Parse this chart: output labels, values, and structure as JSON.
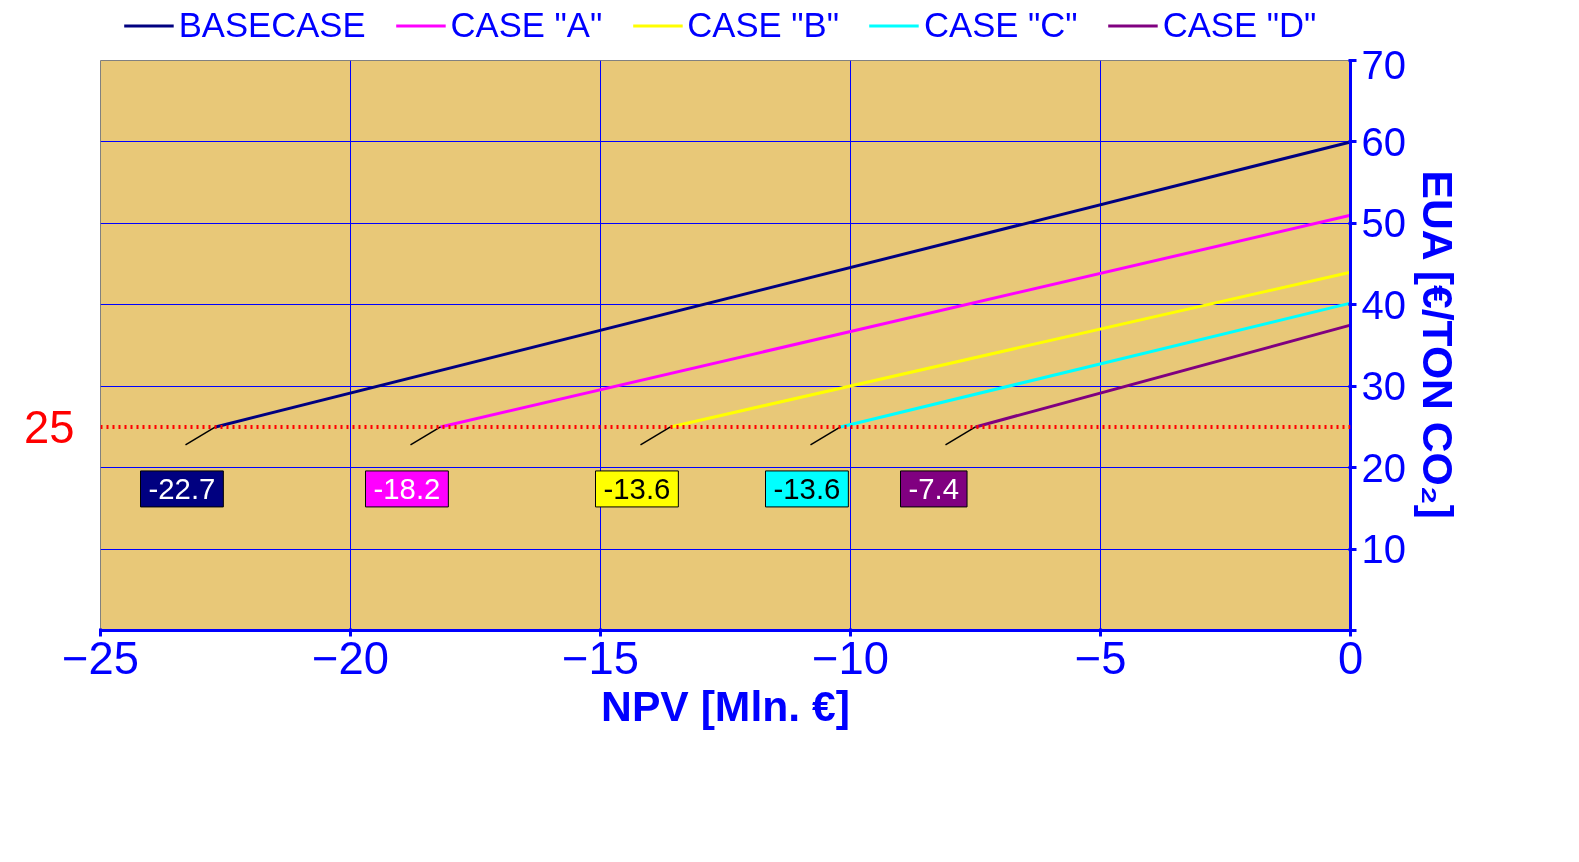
{
  "chart_data": {
    "type": "line",
    "xlabel": "NPV [Mln. €]",
    "ylabel": "EUA [€/TON CO₂]",
    "xlim": [
      -25,
      0
    ],
    "xticks": [
      -25,
      -20,
      -15,
      -10,
      -5,
      0
    ],
    "ylim": [
      0,
      70
    ],
    "yticks": [
      {
        "value": 0,
        "label": null
      },
      10,
      20,
      30,
      40,
      50,
      60,
      70
    ],
    "grid": true,
    "legend": "top",
    "line_style": "solid",
    "marker": "none",
    "series": [
      {
        "name": "BASECASE",
        "color": "#000080",
        "x": [
          -22.7,
          0
        ],
        "values": [
          25,
          60
        ]
      },
      {
        "name": "CASE \"A\"",
        "color": "#ff00ff",
        "x": [
          -18.2,
          0
        ],
        "values": [
          25,
          51
        ]
      },
      {
        "name": "CASE \"B\"",
        "color": "#ffff00",
        "x": [
          -13.6,
          0
        ],
        "values": [
          25,
          44
        ]
      },
      {
        "name": "CASE \"C\"",
        "color": "#00ffff",
        "x": [
          -10.2,
          0
        ],
        "values": [
          25,
          40.2
        ]
      },
      {
        "name": "CASE \"D\"",
        "color": "#800080",
        "x": [
          -7.5,
          0
        ],
        "values": [
          25,
          37.5
        ]
      }
    ],
    "ref_lines": [
      {
        "axis": "y",
        "value": 25,
        "label": "25",
        "color": "#ff0000",
        "line_style": "dotted"
      }
    ],
    "annotations": [
      {
        "text": "-22.7",
        "x": -22.7,
        "y": 25
      },
      {
        "text": "-18.2",
        "x": -18.2,
        "y": 25
      },
      {
        "text": "-13.6",
        "x": -13.6,
        "y": 25
      },
      {
        "text": "-13.6",
        "x": -10.2,
        "y": 25
      },
      {
        "text": "-7.4",
        "x": -7.5,
        "y": 25
      }
    ]
  }
}
